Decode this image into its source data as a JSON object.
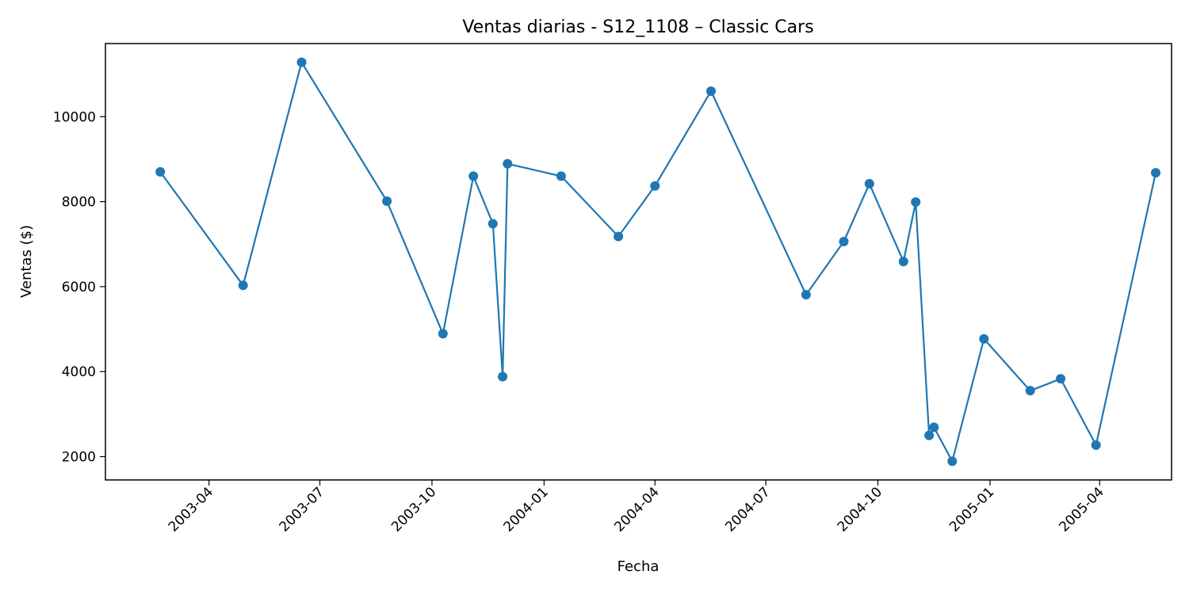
{
  "chart_data": {
    "type": "line",
    "title": "Ventas diarias - S12_1108 – Classic Cars",
    "xlabel": "Fecha",
    "ylabel": "Ventas ($)",
    "x_axis": {
      "type": "date",
      "range": [
        "2003-01-06",
        "2005-05-30"
      ],
      "ticks": [
        "2003-04",
        "2003-07",
        "2003-10",
        "2004-01",
        "2004-04",
        "2004-07",
        "2004-10",
        "2005-01",
        "2005-04"
      ]
    },
    "y_axis": {
      "range": [
        1450,
        11720
      ],
      "ticks": [
        2000,
        4000,
        6000,
        8000,
        10000
      ]
    },
    "grid": false,
    "legend": "none",
    "series": [
      {
        "color": "#1f77b4",
        "marker": "circle",
        "points": [
          {
            "x": "2003-02-20",
            "y": 8700
          },
          {
            "x": "2003-04-29",
            "y": 6030
          },
          {
            "x": "2003-06-16",
            "y": 11280
          },
          {
            "x": "2003-08-25",
            "y": 8010
          },
          {
            "x": "2003-10-10",
            "y": 4890
          },
          {
            "x": "2003-11-04",
            "y": 8600
          },
          {
            "x": "2003-11-20",
            "y": 7480
          },
          {
            "x": "2003-11-28",
            "y": 3880
          },
          {
            "x": "2003-12-02",
            "y": 8890
          },
          {
            "x": "2004-01-15",
            "y": 8600
          },
          {
            "x": "2004-03-02",
            "y": 7180
          },
          {
            "x": "2004-04-01",
            "y": 8370
          },
          {
            "x": "2004-05-17",
            "y": 10600
          },
          {
            "x": "2004-08-03",
            "y": 5810
          },
          {
            "x": "2004-09-03",
            "y": 7060
          },
          {
            "x": "2004-09-24",
            "y": 8420
          },
          {
            "x": "2004-10-22",
            "y": 6590
          },
          {
            "x": "2004-11-01",
            "y": 7990
          },
          {
            "x": "2004-11-12",
            "y": 2500
          },
          {
            "x": "2004-11-16",
            "y": 2690
          },
          {
            "x": "2004-12-01",
            "y": 1890
          },
          {
            "x": "2004-12-27",
            "y": 4770
          },
          {
            "x": "2005-02-03",
            "y": 3550
          },
          {
            "x": "2005-02-28",
            "y": 3830
          },
          {
            "x": "2005-03-29",
            "y": 2270
          },
          {
            "x": "2005-05-17",
            "y": 8680
          }
        ]
      }
    ]
  }
}
